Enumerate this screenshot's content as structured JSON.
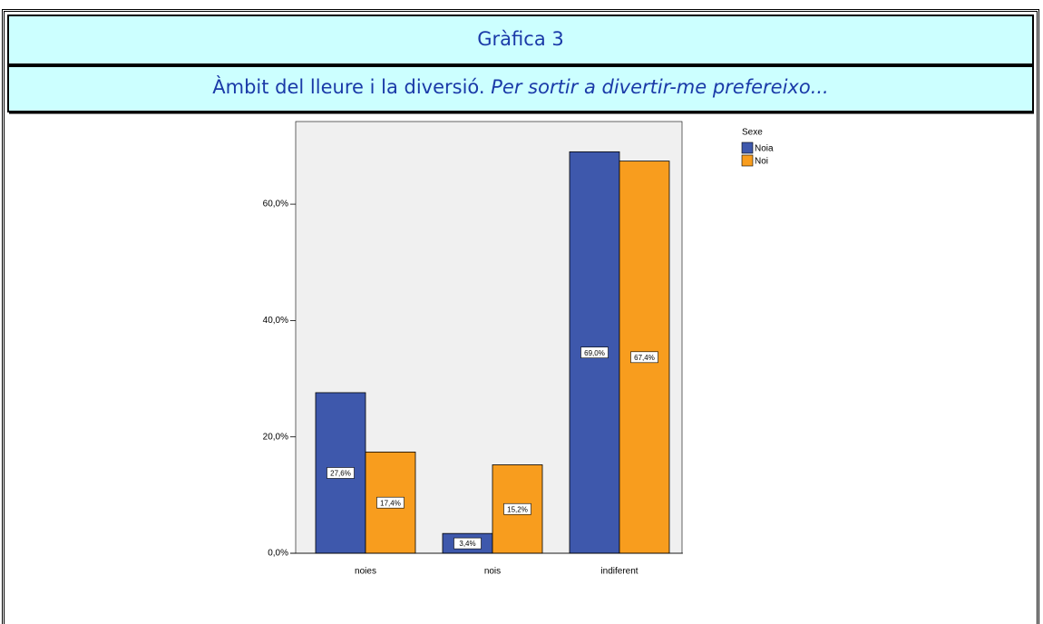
{
  "header": {
    "title": "Gràfica 3",
    "subtitle": "Àmbit del lleure i la diversió.",
    "subtitle_italic": "Per sortir a divertir-me prefereixo..."
  },
  "chart_data": {
    "type": "bar",
    "categories": [
      "noies",
      "nois",
      "indiferent"
    ],
    "series": [
      {
        "name": "Noia",
        "color": "#3e58ac",
        "values": [
          27.6,
          3.4,
          69.0
        ],
        "value_labels": [
          "27,6%",
          "3,4%",
          "69,0%"
        ]
      },
      {
        "name": "Noi",
        "color": "#f89d1e",
        "values": [
          17.4,
          15.2,
          67.4
        ],
        "value_labels": [
          "17,4%",
          "15,2%",
          "67,4%"
        ]
      }
    ],
    "legend_title": "Sexe",
    "legend": "right",
    "ylim": [
      0,
      74.2
    ],
    "yticks": [
      {
        "value": 0,
        "label": "0,0%"
      },
      {
        "value": 20,
        "label": "20,0%"
      },
      {
        "value": 40,
        "label": "40,0%"
      },
      {
        "value": 60,
        "label": "60,0%"
      }
    ]
  }
}
